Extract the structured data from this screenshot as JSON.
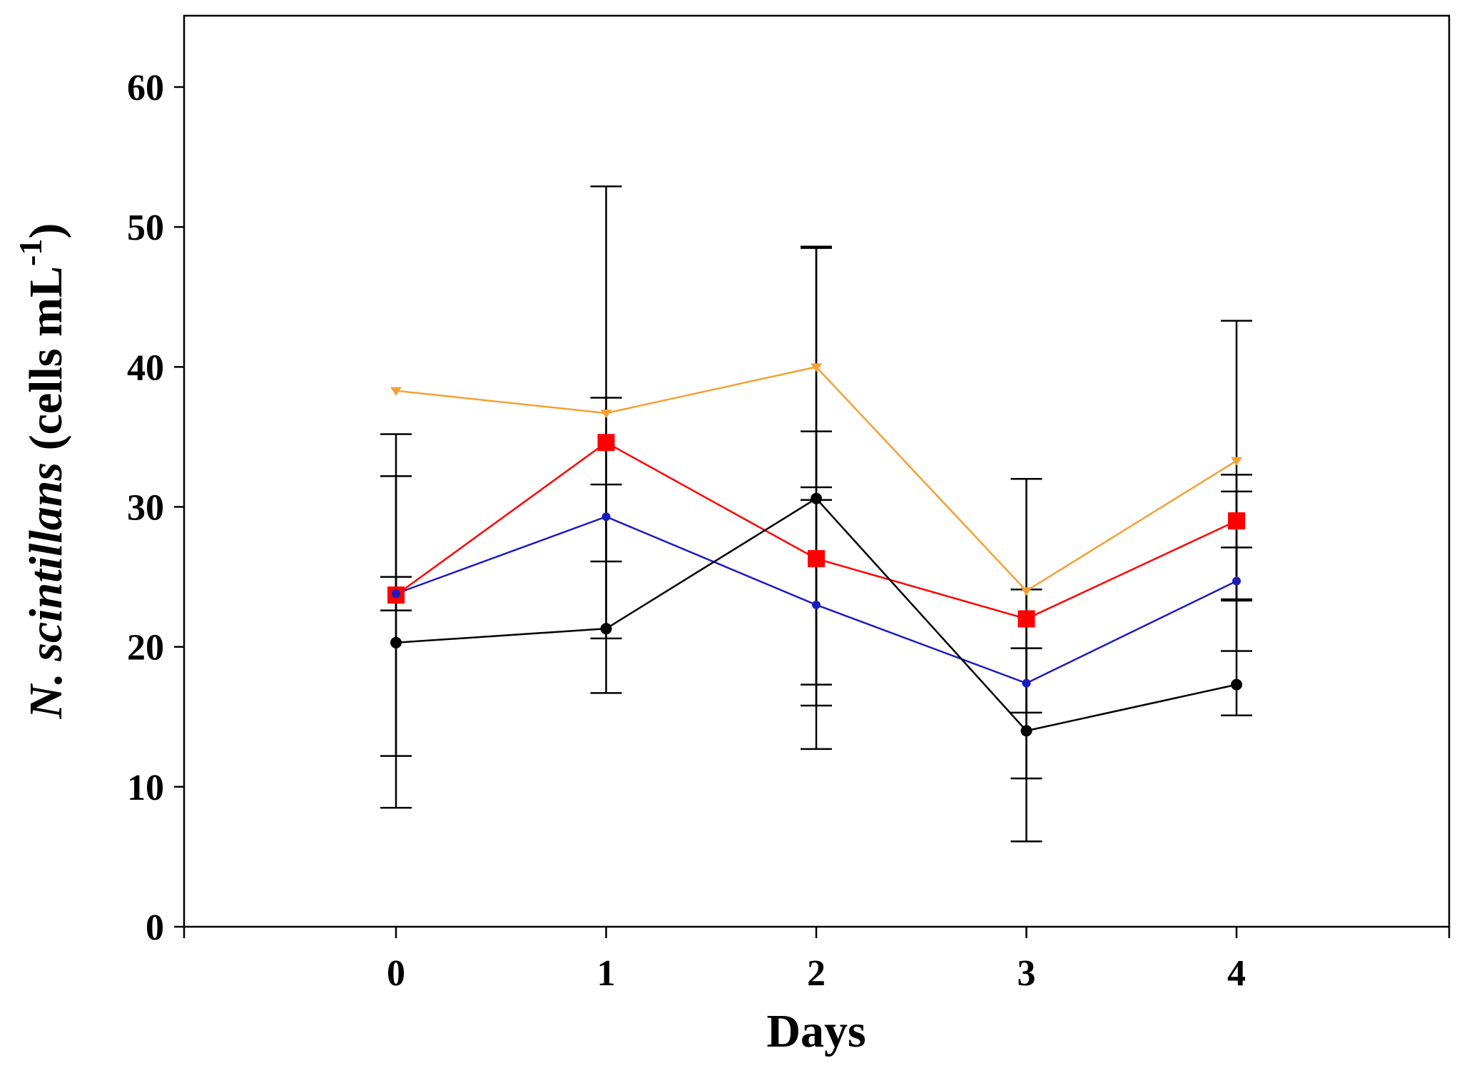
{
  "chart_data": {
    "type": "line",
    "title": "",
    "xlabel": "Days",
    "ylabel": {
      "italic": "N. scintillans",
      "regular": " (cells mL",
      "superscript": "-1",
      "close": ")"
    },
    "x": [
      0,
      1,
      2,
      3,
      4
    ],
    "x_tick_labels": [
      "0",
      "1",
      "2",
      "3",
      "4"
    ],
    "xlim": [
      -1,
      5
    ],
    "ylim": [
      0,
      65
    ],
    "y_ticks": [
      0,
      10,
      20,
      30,
      40,
      50,
      60
    ],
    "y_tick_labels": [
      "0",
      "10",
      "20",
      "30",
      "40",
      "50",
      "60"
    ],
    "grid": false,
    "legend": "none",
    "series": [
      {
        "name": "orange series",
        "color": "#f5a033",
        "marker": "triangle-down",
        "values": [
          38.3,
          36.7,
          40.0,
          24.0,
          33.3
        ],
        "error_lower": [
          null,
          null,
          31.4,
          null,
          23.3
        ],
        "error_upper": [
          null,
          null,
          48.6,
          null,
          43.3
        ]
      },
      {
        "name": "red series",
        "color": "#ff0000",
        "marker": "square",
        "values": [
          23.7,
          34.6,
          26.3,
          22.0,
          29.0
        ],
        "error_lower": [
          12.2,
          16.7,
          17.3,
          10.6,
          23.4
        ],
        "error_upper": [
          35.2,
          52.9,
          35.4,
          32.0,
          32.3
        ]
      },
      {
        "name": "blue series",
        "color": "#1b1bbf",
        "marker": "circle-small",
        "values": [
          23.8,
          29.3,
          23.0,
          17.4,
          24.7
        ],
        "error_lower": [
          22.6,
          26.1,
          15.8,
          15.3,
          19.7
        ],
        "error_upper": [
          25.0,
          31.6,
          30.5,
          19.9,
          31.1
        ]
      },
      {
        "name": "black series",
        "color": "#000000",
        "marker": "circle",
        "values": [
          20.3,
          21.3,
          30.6,
          14.0,
          17.3
        ],
        "error_lower": [
          8.5,
          20.6,
          12.7,
          6.1,
          15.1
        ],
        "error_upper": [
          32.2,
          37.8,
          48.5,
          24.1,
          27.1
        ]
      }
    ]
  }
}
